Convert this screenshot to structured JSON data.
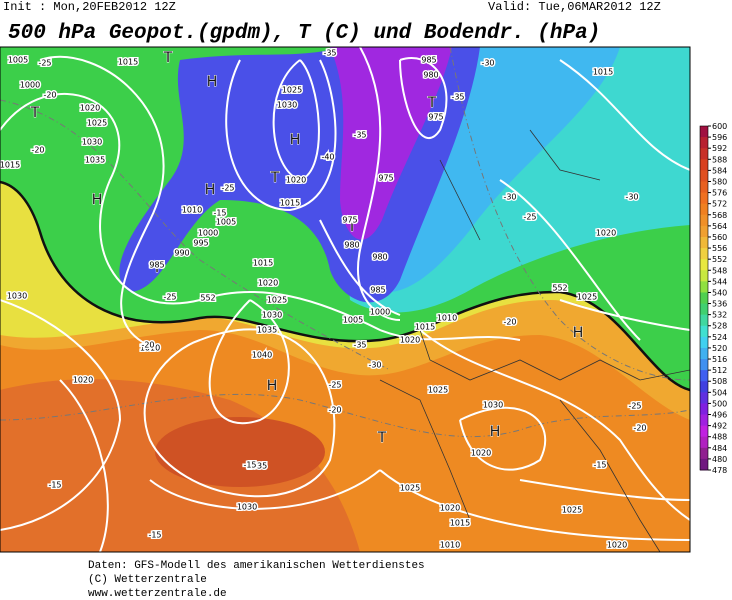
{
  "header": {
    "init": "Init : Mon,20FEB2012 12Z",
    "valid": "Valid: Tue,06MAR2012 12Z",
    "title": "500 hPa Geopot.(gpdm), T (C) und Bodendr. (hPa)"
  },
  "colorbar": {
    "ticks": [
      600,
      596,
      592,
      588,
      584,
      580,
      576,
      572,
      568,
      564,
      560,
      556,
      552,
      548,
      544,
      540,
      536,
      532,
      528,
      524,
      520,
      516,
      512,
      508,
      504,
      500,
      496,
      492,
      488,
      484,
      480,
      478
    ],
    "colors": [
      "#a01040",
      "#b82030",
      "#c83028",
      "#d84020",
      "#e05020",
      "#e86020",
      "#f07020",
      "#f08020",
      "#f09028",
      "#f0a030",
      "#f0b838",
      "#f0d040",
      "#e8e840",
      "#c8e840",
      "#90e040",
      "#50d050",
      "#40d070",
      "#40d8a0",
      "#40e0d0",
      "#40d0f0",
      "#40b0f0",
      "#4090f0",
      "#4060f0",
      "#4040e0",
      "#6030e0",
      "#8020e0",
      "#a020e0",
      "#c020e0",
      "#b020c0",
      "#902090",
      "#701880"
    ]
  },
  "map_labels": [
    "T",
    "H",
    "H",
    "H",
    "T",
    "H",
    "T",
    "T",
    "H",
    "T",
    "H",
    "H",
    "T",
    "T",
    "1005",
    "1000",
    "1015",
    "1020",
    "1025",
    "1030",
    "1035",
    "1025",
    "1030",
    "980",
    "975",
    "985",
    "1020",
    "1015",
    "1010",
    "1005",
    "1000",
    "995",
    "990",
    "985",
    "975",
    "975",
    "980",
    "980",
    "985",
    "1005",
    "1000",
    "1015",
    "1010",
    "1020",
    "1015",
    "1020",
    "1025",
    "1030",
    "1035",
    "1040",
    "1030",
    "1010",
    "1020",
    "1025",
    "1030",
    "1035",
    "1030",
    "1025",
    "1020",
    "1015",
    "1010",
    "1025",
    "1020",
    "1020",
    "1025",
    "1020",
    "1015",
    "1015",
    "-25",
    "-20",
    "-15",
    "-15",
    "-20",
    "-25",
    "-20",
    "-30",
    "-35",
    "-35",
    "-35",
    "-30",
    "-25",
    "-30",
    "-20",
    "-25",
    "-15",
    "-40",
    "-25",
    "-15",
    "-25",
    "-20",
    "-30",
    "-35",
    "-15",
    "552",
    "552",
    "-20"
  ],
  "footer": [
    "Daten: GFS-Modell des amerikanischen Wetterdienstes",
    "(C) Wetterzentrale",
    "www.wetterzentrale.de"
  ]
}
